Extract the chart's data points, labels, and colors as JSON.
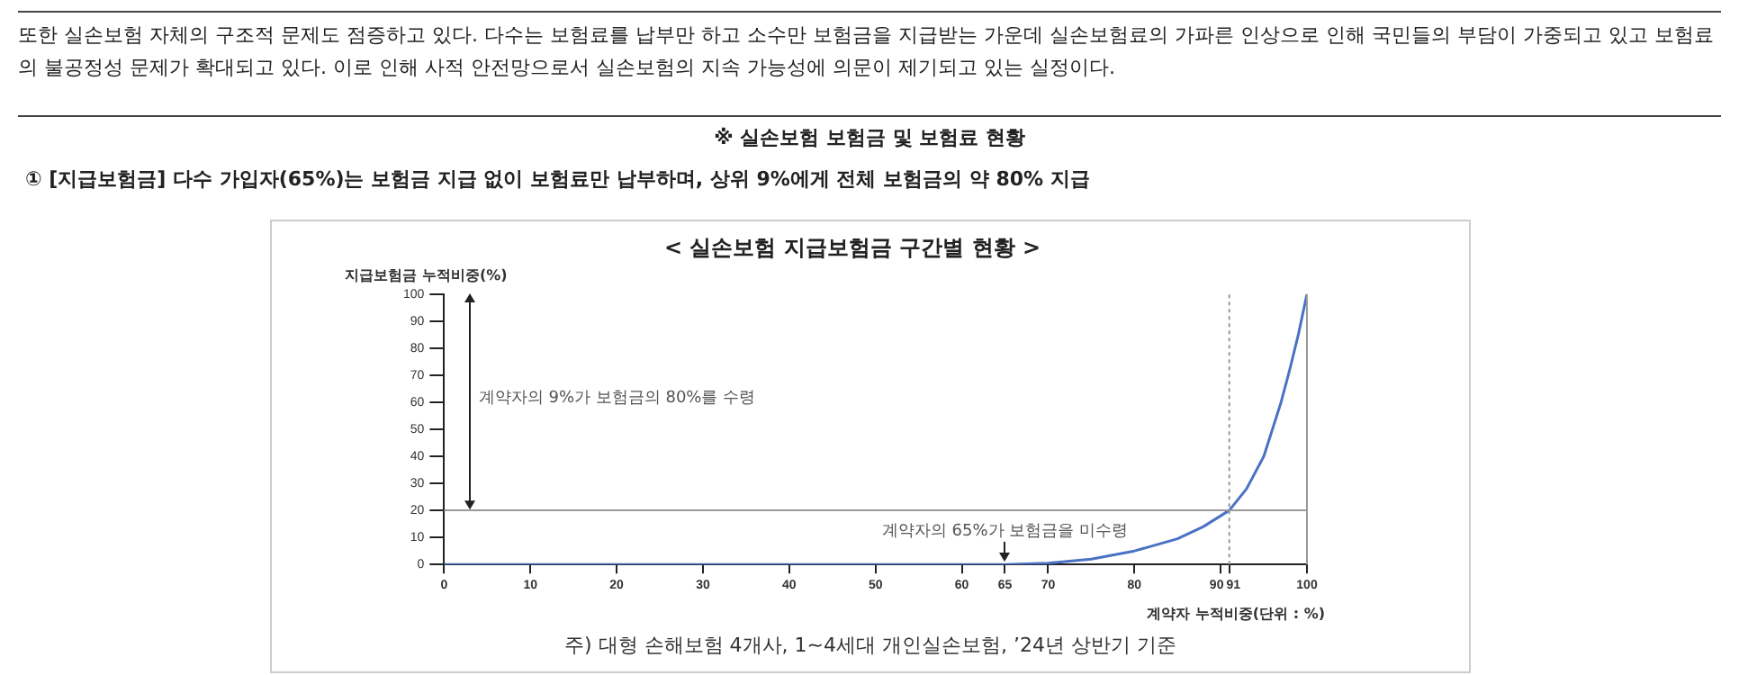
{
  "chart_data": {
    "type": "line",
    "title": "< 실손보험 지급보험금 구간별 현황 >",
    "xlabel": "계약자 누적비중(단위 : %)",
    "ylabel": "지급보험금 누적비중(%)",
    "x": [
      0,
      65,
      70,
      75,
      80,
      85,
      88,
      91,
      93,
      95,
      96,
      97,
      98,
      99,
      100
    ],
    "series": [
      {
        "color": "#4a72c4",
        "values": [
          0,
          0,
          0.5,
          2,
          5,
          9.5,
          14,
          20,
          28,
          40,
          50,
          60,
          72,
          85,
          100
        ]
      }
    ],
    "xlim": [
      0,
      100
    ],
    "xticks": [
      0,
      10,
      20,
      30,
      40,
      50,
      60,
      65,
      70,
      80,
      90,
      91,
      100
    ],
    "ylim": [
      0,
      100
    ],
    "yticks": [
      0,
      10,
      20,
      30,
      40,
      50,
      60,
      70,
      80,
      90,
      100
    ],
    "grid": false,
    "legend": false,
    "marker": "none",
    "line_style": "solid",
    "ref_lines": [
      {
        "axis": "y",
        "value": 20,
        "color": "#999999",
        "line_style": "solid"
      },
      {
        "axis": "x",
        "value": 91,
        "color": "#999999",
        "line_style": "dotted"
      },
      {
        "axis": "x",
        "value": 100,
        "color": "#999999",
        "line_style": "solid"
      }
    ],
    "annotations": [
      "또한 실손보험 자체의 구조적 문제도 점증하고 있다. 다수는 보험료를 납부만 하고 소수만 보험금을 지급받는 가운데 실손보험료의 가파른 인상으로 인해 국민들의 부담이 가중되고 있고 보험료의 불공정성 문제가 확대되고 있다. 이로 인해 사적 안전망으로서 실손보험의 지속 가능성에 의문이 제기되고 있는 실정이다.",
      "※ 실손보험 보험금 및 보험료 현황",
      "① [지급보험금] 다수 가입자(65%)는 보험금 지급 없이 보험료만 납부하며, 상위 9%에게 전체 보험금의 약 80% 지급",
      "계약자의 9%가 보험금의 80%를 수령",
      {
        "text": "계약자의 65%가 보험금을 미수령",
        "x": 65,
        "y": 0
      },
      "주) 대형 손해보험 4개사, 1~4세대 개인실손보험, ’24년 상반기 기준"
    ]
  }
}
